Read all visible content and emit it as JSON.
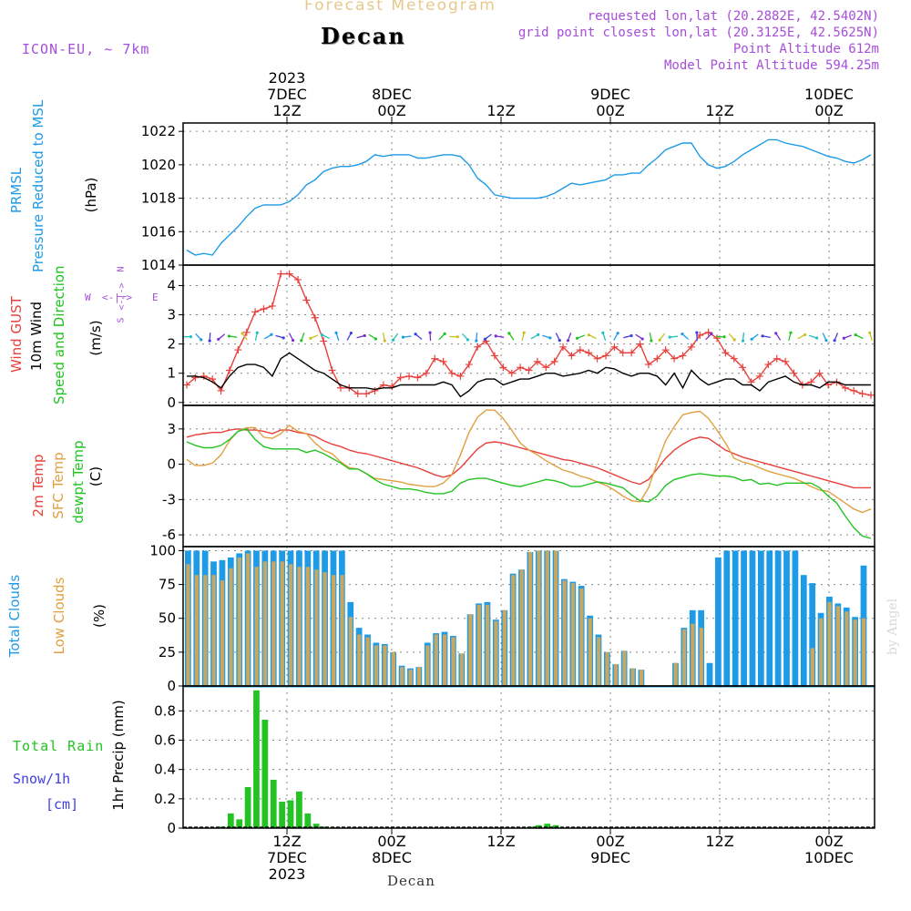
{
  "header": {
    "title": "Forecast Meteogram",
    "station": "Decan",
    "model": "ICON-EU, ~ 7km",
    "requested": "requested lon,lat (20.2882E, 42.5402N)",
    "grid_point": "grid point closest lon,lat (20.3125E, 42.5625N)",
    "point_altitude": "Point Altitude 612m",
    "model_altitude": "Model Point Altitude 594.25m"
  },
  "colors": {
    "pressure": "#1e9be6",
    "gust": "#e8403c",
    "wind10": "#000000",
    "green": "#22c322",
    "orange": "#e0a040",
    "purple": "#a64dd9",
    "snow": "#4040e0",
    "total_cloud": "#1e9be6",
    "low_cloud": "#c8a860"
  },
  "time_axis": {
    "top_labels": [
      {
        "l1": "2023",
        "l2": "7DEC",
        "l3": "12Z"
      },
      {
        "l1": "",
        "l2": "8DEC",
        "l3": "00Z"
      },
      {
        "l1": "",
        "l2": "",
        "l3": "12Z"
      },
      {
        "l1": "",
        "l2": "9DEC",
        "l3": "00Z"
      },
      {
        "l1": "",
        "l2": "",
        "l3": "12Z"
      },
      {
        "l1": "",
        "l2": "10DEC",
        "l3": "00Z"
      }
    ],
    "bottom_labels": [
      {
        "l1": "12Z",
        "l2": "7DEC",
        "l3": "2023"
      },
      {
        "l1": "00Z",
        "l2": "8DEC",
        "l3": ""
      },
      {
        "l1": "12Z",
        "l2": "",
        "l3": ""
      },
      {
        "l1": "00Z",
        "l2": "9DEC",
        "l3": ""
      },
      {
        "l1": "12Z",
        "l2": "",
        "l3": ""
      },
      {
        "l1": "00Z",
        "l2": "10DEC",
        "l3": ""
      }
    ],
    "bottom_station": "Decan"
  },
  "watermark": "by Angel",
  "panel_labels": {
    "pressure": {
      "a": "PRMSL",
      "b": "Pressure Reduced to MSL",
      "unit": "(hPa)"
    },
    "wind": {
      "a": "Wind GUST",
      "b": "10m Wind",
      "c": "Speed and Direction",
      "unit": "(m/s)",
      "compass_n": "N",
      "compass_s": "S",
      "compass_w": "W",
      "compass_e": "E",
      "compass_ns": "<-|->",
      "compass_we": "<-|->"
    },
    "temp": {
      "a": "2m Temp",
      "b": "SFC Temp",
      "c": "dewpt Temp",
      "unit": "(C)"
    },
    "cloud": {
      "a": "Total Clouds",
      "b": "Low Clouds",
      "unit": "(%)"
    },
    "precip": {
      "rain_label": "Total  Rain",
      "snow_label": "Snow/1h",
      "snow_unit": "[cm]",
      "axis": "1hr Precip (mm)"
    }
  },
  "chart_data": [
    {
      "id": "pressure",
      "type": "line",
      "ylim": [
        1014,
        1022.5
      ],
      "yticks": [
        1014,
        1016,
        1018,
        1020,
        1022
      ],
      "x_hours_from_7DEC_00Z": "t",
      "series": [
        {
          "name": "PRMSL",
          "values": [
            1014.9,
            1014.6,
            1014.7,
            1014.6,
            1015.3,
            1015.8,
            1016.3,
            1016.9,
            1017.4,
            1017.6,
            1017.6,
            1017.6,
            1017.8,
            1018.2,
            1018.8,
            1019.1,
            1019.6,
            1019.8,
            1019.9,
            1019.9,
            1020.0,
            1020.2,
            1020.6,
            1020.5,
            1020.6,
            1020.6,
            1020.6,
            1020.4,
            1020.4,
            1020.5,
            1020.6,
            1020.6,
            1020.5,
            1020.0,
            1019.2,
            1018.8,
            1018.2,
            1018.1,
            1018.0,
            1018.0,
            1018.0,
            1018.0,
            1018.1,
            1018.3,
            1018.6,
            1018.9,
            1018.8,
            1018.9,
            1019.0,
            1019.1,
            1019.4,
            1019.4,
            1019.5,
            1019.5,
            1020.0,
            1020.4,
            1020.9,
            1021.1,
            1021.3,
            1021.3,
            1020.5,
            1020.0,
            1019.8,
            1019.9,
            1020.2,
            1020.6,
            1020.9,
            1021.2,
            1021.5,
            1021.5,
            1021.3,
            1021.2,
            1021.1,
            1020.9,
            1020.7,
            1020.5,
            1020.4,
            1020.2,
            1020.1,
            1020.3,
            1020.6
          ]
        }
      ]
    },
    {
      "id": "wind",
      "type": "line",
      "ylim": [
        -0.1,
        4.7
      ],
      "yticks": [
        0,
        1,
        2,
        3,
        4
      ],
      "series": [
        {
          "name": "Wind GUST",
          "values": [
            0.6,
            0.85,
            0.9,
            0.8,
            0.4,
            1.1,
            1.8,
            2.4,
            3.1,
            3.2,
            3.3,
            4.4,
            4.4,
            4.2,
            3.5,
            2.9,
            2.1,
            1.1,
            0.5,
            0.5,
            0.3,
            0.3,
            0.4,
            0.6,
            0.55,
            0.85,
            0.9,
            0.85,
            1.0,
            1.5,
            1.4,
            1.0,
            0.9,
            1.3,
            1.9,
            2.1,
            1.6,
            1.2,
            1.0,
            1.2,
            1.1,
            1.4,
            1.2,
            1.4,
            1.9,
            1.6,
            1.8,
            1.7,
            1.5,
            1.6,
            1.9,
            1.7,
            1.7,
            2.0,
            1.3,
            1.5,
            1.8,
            1.5,
            1.6,
            1.9,
            2.3,
            2.4,
            2.2,
            1.7,
            1.5,
            1.2,
            0.7,
            0.9,
            1.3,
            1.5,
            1.4,
            1.0,
            0.6,
            0.7,
            1.0,
            0.6,
            0.7,
            0.5,
            0.4,
            0.3,
            0.25
          ]
        },
        {
          "name": "10m Wind",
          "values": [
            0.9,
            0.9,
            0.85,
            0.7,
            0.5,
            0.9,
            1.2,
            1.3,
            1.3,
            1.2,
            0.9,
            1.5,
            1.7,
            1.5,
            1.3,
            1.1,
            1.0,
            0.8,
            0.6,
            0.5,
            0.5,
            0.5,
            0.45,
            0.5,
            0.5,
            0.6,
            0.6,
            0.6,
            0.6,
            0.6,
            0.7,
            0.6,
            0.2,
            0.4,
            0.7,
            0.8,
            0.8,
            0.6,
            0.7,
            0.8,
            0.8,
            0.9,
            1.0,
            1.0,
            0.9,
            0.95,
            1.0,
            1.1,
            1.0,
            1.2,
            1.15,
            1.0,
            0.9,
            1.0,
            1.0,
            0.9,
            0.6,
            1.0,
            0.5,
            1.1,
            0.8,
            0.6,
            0.7,
            0.8,
            0.8,
            0.6,
            0.6,
            0.4,
            0.7,
            0.8,
            0.9,
            0.7,
            0.6,
            0.6,
            0.5,
            0.7,
            0.7,
            0.6,
            0.6,
            0.6,
            0.6
          ]
        }
      ]
    },
    {
      "id": "temp",
      "type": "line",
      "ylim": [
        -7,
        5
      ],
      "yticks": [
        3,
        0,
        -3,
        -6
      ],
      "series": [
        {
          "name": "2m Temp",
          "values": [
            2.3,
            2.5,
            2.6,
            2.7,
            2.7,
            2.9,
            3.0,
            2.9,
            2.9,
            2.8,
            2.6,
            2.9,
            2.9,
            2.7,
            2.6,
            2.4,
            2.0,
            1.7,
            1.5,
            1.2,
            1.0,
            0.9,
            0.7,
            0.5,
            0.3,
            0.1,
            -0.1,
            -0.3,
            -0.6,
            -0.9,
            -1.1,
            -0.9,
            -0.3,
            0.5,
            1.3,
            1.8,
            1.9,
            1.8,
            1.6,
            1.4,
            1.2,
            1.0,
            0.8,
            0.6,
            0.4,
            0.3,
            0.1,
            -0.1,
            -0.3,
            -0.6,
            -0.9,
            -1.2,
            -1.5,
            -1.7,
            -1.3,
            -0.4,
            0.5,
            1.2,
            1.7,
            2.1,
            2.3,
            2.2,
            1.7,
            1.2,
            0.9,
            0.6,
            0.4,
            0.2,
            0.0,
            -0.2,
            -0.4,
            -0.6,
            -0.8,
            -1.0,
            -1.2,
            -1.4,
            -1.6,
            -1.8,
            -2.0,
            -2.0,
            -2.0
          ]
        },
        {
          "name": "SFC Temp",
          "values": [
            0.4,
            -0.1,
            -0.1,
            0.1,
            0.8,
            2.0,
            2.8,
            3.1,
            3.1,
            2.3,
            2.2,
            2.6,
            3.3,
            2.8,
            2.6,
            1.8,
            1.2,
            0.9,
            0.2,
            -0.3,
            -0.4,
            -0.8,
            -1.2,
            -1.3,
            -1.4,
            -1.5,
            -1.7,
            -1.8,
            -1.9,
            -1.9,
            -1.6,
            -0.9,
            0.8,
            2.7,
            4.0,
            4.6,
            4.6,
            3.9,
            2.9,
            1.8,
            1.2,
            0.8,
            0.3,
            -0.1,
            -0.5,
            -0.7,
            -1.0,
            -1.2,
            -1.5,
            -1.8,
            -2.2,
            -2.7,
            -3.1,
            -3.2,
            -2.0,
            0.1,
            2.0,
            3.2,
            4.2,
            4.4,
            4.5,
            3.9,
            2.9,
            1.8,
            0.5,
            0.2,
            0.0,
            -0.3,
            -0.6,
            -0.8,
            -1.0,
            -1.2,
            -1.5,
            -1.9,
            -2.2,
            -2.3,
            -2.8,
            -3.3,
            -3.8,
            -4.1,
            -3.8
          ]
        },
        {
          "name": "dewpt Temp",
          "values": [
            1.9,
            1.6,
            1.4,
            1.4,
            1.6,
            2.1,
            2.8,
            3.0,
            2.1,
            1.5,
            1.3,
            1.3,
            1.3,
            1.3,
            1.0,
            1.2,
            0.9,
            0.5,
            0.1,
            -0.4,
            -0.4,
            -0.8,
            -1.3,
            -1.7,
            -1.9,
            -2.1,
            -2.1,
            -2.2,
            -2.4,
            -2.5,
            -2.5,
            -2.3,
            -1.6,
            -1.3,
            -1.2,
            -1.2,
            -1.4,
            -1.6,
            -1.8,
            -1.9,
            -1.7,
            -1.5,
            -1.3,
            -1.4,
            -1.6,
            -1.9,
            -1.9,
            -1.7,
            -1.5,
            -1.6,
            -1.8,
            -2.0,
            -2.6,
            -3.1,
            -3.2,
            -2.7,
            -1.8,
            -1.3,
            -1.1,
            -0.9,
            -0.8,
            -0.9,
            -1.0,
            -1.0,
            -1.1,
            -1.4,
            -1.3,
            -1.7,
            -1.6,
            -1.8,
            -1.6,
            -1.6,
            -1.6,
            -1.6,
            -2.0,
            -2.7,
            -3.3,
            -4.4,
            -5.4,
            -6.1,
            -6.3
          ]
        }
      ]
    },
    {
      "id": "cloud",
      "type": "bar",
      "ylim": [
        0,
        103
      ],
      "yticks": [
        0,
        25,
        50,
        75,
        100
      ],
      "series": [
        {
          "name": "Total Clouds",
          "values": [
            100,
            100,
            100,
            92,
            93,
            95,
            98,
            100,
            100,
            100,
            100,
            100,
            100,
            100,
            100,
            100,
            100,
            100,
            100,
            62,
            43,
            38,
            32,
            31,
            25,
            15,
            13,
            14,
            32,
            39,
            40,
            37,
            24,
            53,
            61,
            62,
            49,
            56,
            83,
            86,
            99,
            100,
            100,
            100,
            79,
            77,
            74,
            52,
            38,
            25,
            16,
            26,
            13,
            12,
            0,
            0,
            0,
            17,
            43,
            56,
            56,
            17,
            95,
            100,
            100,
            100,
            100,
            100,
            100,
            100,
            100,
            100,
            82,
            76,
            54,
            66,
            61,
            58,
            51,
            89
          ]
        },
        {
          "name": "Low Clouds",
          "values": [
            90,
            82,
            82,
            82,
            78,
            87,
            95,
            98,
            88,
            92,
            92,
            92,
            90,
            88,
            88,
            86,
            84,
            82,
            82,
            51,
            38,
            36,
            30,
            30,
            25,
            14,
            12,
            14,
            30,
            38,
            38,
            36,
            24,
            53,
            60,
            60,
            48,
            56,
            82,
            86,
            99,
            100,
            100,
            100,
            78,
            76,
            72,
            50,
            36,
            25,
            16,
            26,
            13,
            12,
            0,
            0,
            0,
            17,
            42,
            46,
            43,
            0,
            0,
            0,
            0,
            0,
            0,
            0,
            0,
            0,
            0,
            0,
            0,
            28,
            50,
            62,
            59,
            55,
            49,
            50
          ]
        }
      ]
    },
    {
      "id": "precip",
      "type": "bar",
      "ylim": [
        0,
        0.97
      ],
      "yticks": [
        0,
        0.2,
        0.4,
        0.6,
        0.8
      ],
      "series": [
        {
          "name": "Total Rain",
          "values": [
            0,
            0,
            0,
            0,
            0.01,
            0.1,
            0.06,
            0.28,
            0.94,
            0.74,
            0.33,
            0.18,
            0.19,
            0.25,
            0.1,
            0.03,
            0.01,
            0.005,
            0,
            0,
            0,
            0,
            0,
            0,
            0,
            0,
            0,
            0,
            0,
            0,
            0,
            0,
            0,
            0,
            0,
            0,
            0,
            0,
            0,
            0,
            0.01,
            0.02,
            0.03,
            0.02,
            0,
            0,
            0,
            0,
            0,
            0,
            0,
            0,
            0,
            0,
            0,
            0,
            0,
            0,
            0,
            0,
            0,
            0,
            0,
            0,
            0,
            0,
            0,
            0,
            0,
            0,
            0,
            0,
            0,
            0,
            0,
            0,
            0,
            0,
            0,
            0
          ]
        }
      ]
    }
  ]
}
